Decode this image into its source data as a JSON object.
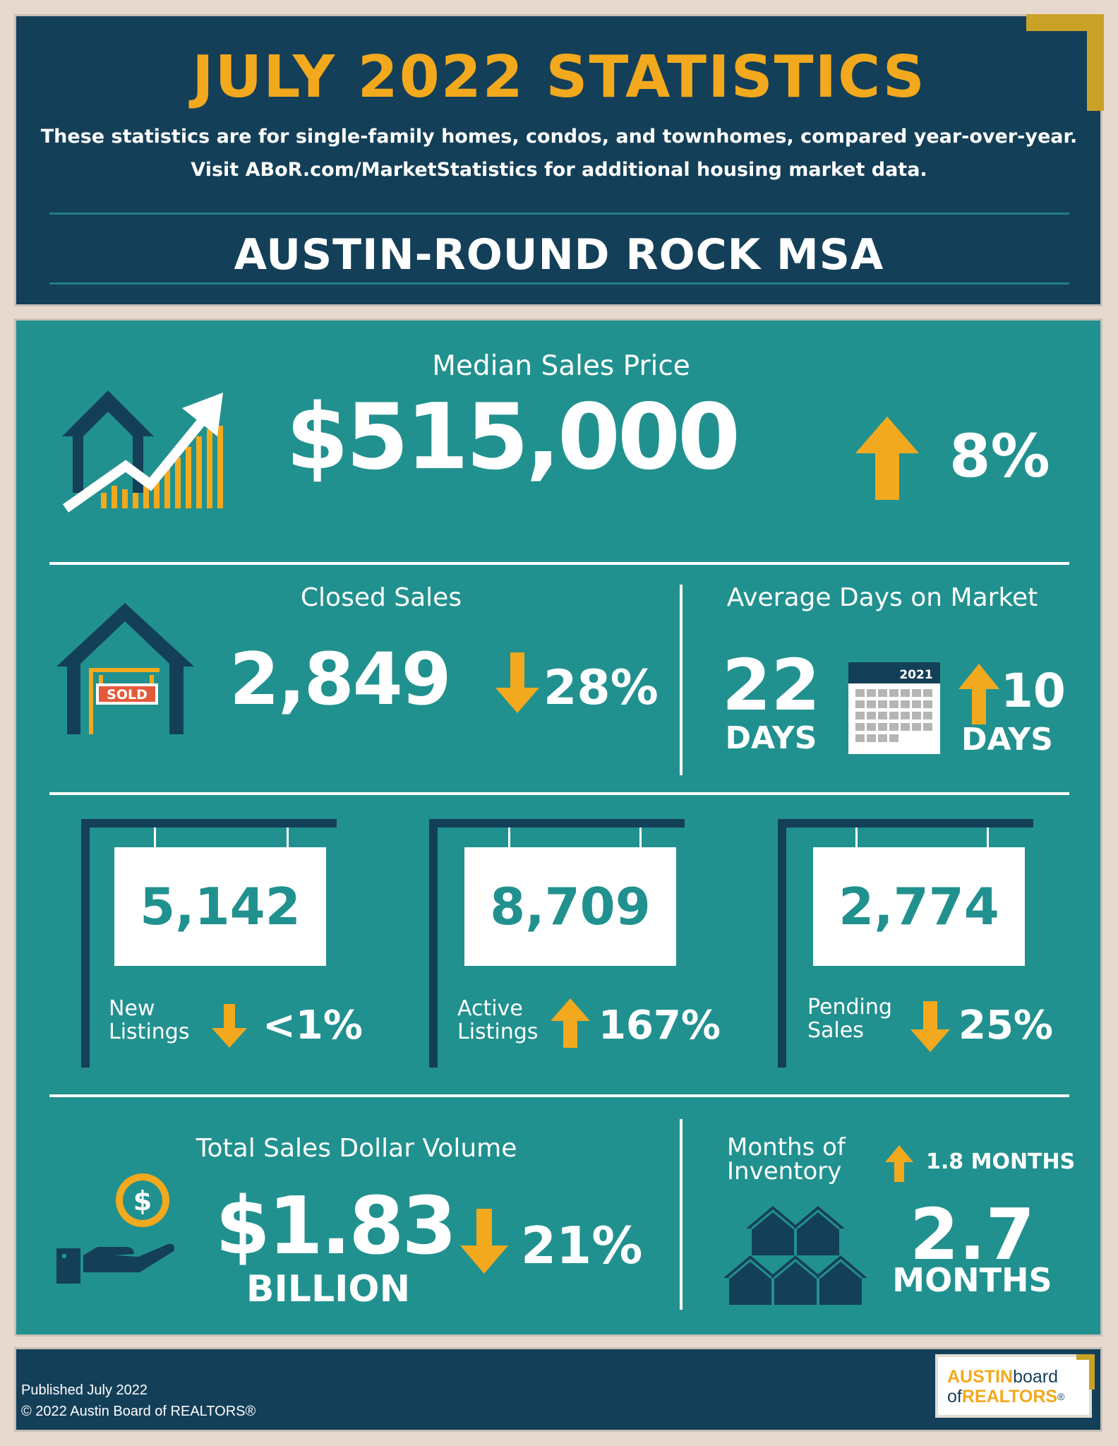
{
  "header": {
    "title": "JULY 2022 STATISTICS",
    "subtitle_line1": "These statistics are for single-family homes, condos, and townhomes, compared year-over-year.",
    "subtitle_line2": "Visit ABoR.com/MarketStatistics for additional housing market data.",
    "region": "AUSTIN-ROUND ROCK MSA"
  },
  "median_price": {
    "label": "Median Sales Price",
    "value": "$515,000",
    "change": "8%",
    "direction": "up"
  },
  "closed_sales": {
    "label": "Closed Sales",
    "value": "2,849",
    "change": "28%",
    "direction": "down",
    "sign_text": "SOLD"
  },
  "days_on_market": {
    "label": "Average Days on Market",
    "value": "22",
    "unit": "DAYS",
    "calendar_year": "2021",
    "change": "10",
    "change_unit": "DAYS",
    "direction": "up"
  },
  "listings": [
    {
      "value": "5,142",
      "label_line1": "New",
      "label_line2": "Listings",
      "change": "<1%",
      "direction": "down"
    },
    {
      "value": "8,709",
      "label_line1": "Active",
      "label_line2": "Listings",
      "change": "167%",
      "direction": "up"
    },
    {
      "value": "2,774",
      "label_line1": "Pending",
      "label_line2": "Sales",
      "change": "25%",
      "direction": "down"
    }
  ],
  "dollar_volume": {
    "label": "Total Sales Dollar Volume",
    "value": "$1.83",
    "unit": "BILLION",
    "change": "21%",
    "direction": "down"
  },
  "inventory": {
    "label_line1": "Months of",
    "label_line2": "Inventory",
    "change": "1.8 MONTHS",
    "direction": "up",
    "value": "2.7",
    "unit": "MONTHS"
  },
  "footer": {
    "published": "Published July 2022",
    "copyright": "© 2022 Austin Board of REALTORS®",
    "logo_line1_a": "AUSTIN",
    "logo_line1_b": "board",
    "logo_line2_a": "of",
    "logo_line2_b": "REALTORS",
    "logo_reg": "®"
  },
  "colors": {
    "navy": "#143f58",
    "teal": "#21918f",
    "gold": "#f2a91e",
    "white": "#ffffff"
  }
}
